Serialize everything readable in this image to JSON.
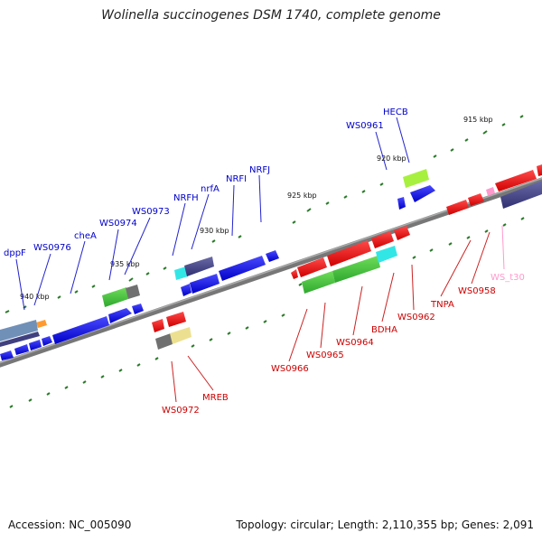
{
  "title": "Wolinella succinogenes DSM 1740, complete genome",
  "footer": {
    "accession": "Accession: NC_005090",
    "summary": "Topology: circular; Length: 2,110,355 bp; Genes: 2,091"
  },
  "scale_labels": [
    "915 kbp",
    "920 kbp",
    "925 kbp",
    "930 kbp",
    "935 kbp",
    "940 kbp"
  ],
  "gene_labels_top": [
    "HECB",
    "WS0961",
    "NRFJ",
    "NRFI",
    "nrfA",
    "NRFH",
    "WS0973",
    "WS0974",
    "cheA",
    "WS0976",
    "dppF"
  ],
  "gene_labels_bottom": [
    "WS_t30",
    "WS0958",
    "TNPA",
    "WS0962",
    "BDHA",
    "WS0964",
    "WS0965",
    "WS0966",
    "MREB",
    "WS0972"
  ],
  "colors": {
    "forward_label": "#0000cc",
    "reverse_label": "#cc0000",
    "rna_label": "#ff99cc",
    "backbone": "#888888",
    "tick": "#2a7a2a"
  }
}
